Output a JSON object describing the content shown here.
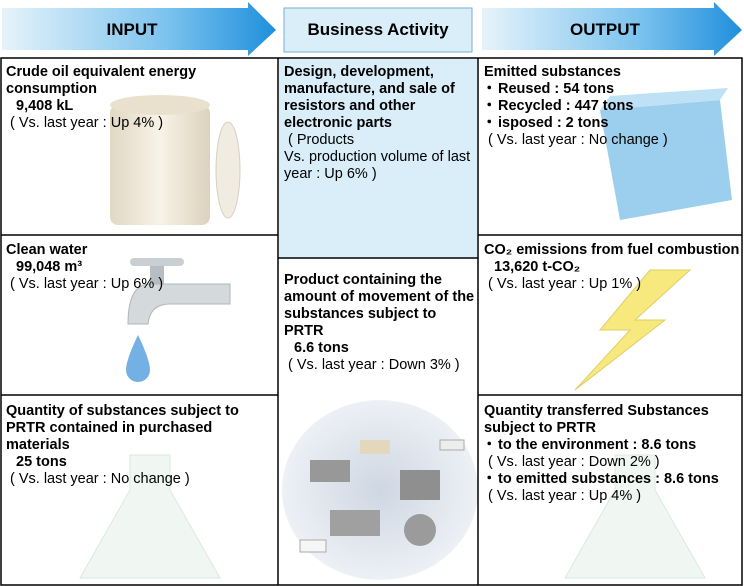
{
  "header": {
    "input": "INPUT",
    "business": "Business Activity",
    "output": "OUTPUT"
  },
  "input": [
    {
      "title": "Crude oil equivalent energy consumption",
      "value": "9,408 kL",
      "note": "( Vs. last year : Up 4% )"
    },
    {
      "title": "Clean water",
      "value": "99,048 m³",
      "note": "( Vs. last year : Up 6% )"
    },
    {
      "title": "Quantity of substances subject to PRTR contained in purchased materials",
      "value": "25 tons",
      "note": "( Vs. last year : No change )"
    }
  ],
  "business": [
    {
      "title": "Design, development, manufacture, and sale of resistors and other electronic parts",
      "note": [
        "( Products",
        "Vs. production volume of last year : Up 6% )"
      ]
    },
    {
      "title": "Product containing the amount of movement of the substances subject to PRTR",
      "value": "6.6 tons",
      "note": "( Vs. last year : Down 3% )"
    }
  ],
  "output": [
    {
      "title": "Emitted substances",
      "items": [
        "Reused : 54 tons",
        "Recycled : 447 tons",
        "isposed : 2 tons"
      ],
      "note": "( Vs. last year : No change )"
    },
    {
      "title": "CO₂ emissions from fuel combustion",
      "value": "13,620 t-CO₂",
      "note": "( Vs. last year : Up 1% )"
    },
    {
      "title": "Quantity transferred Substances subject to PRTR",
      "items": [
        "to the environment : 8.6 tons",
        "( Vs. last year : Down 2% )",
        "to emitted substances : 8.6 tons",
        "( Vs. last year : Up 4% )"
      ]
    }
  ]
}
